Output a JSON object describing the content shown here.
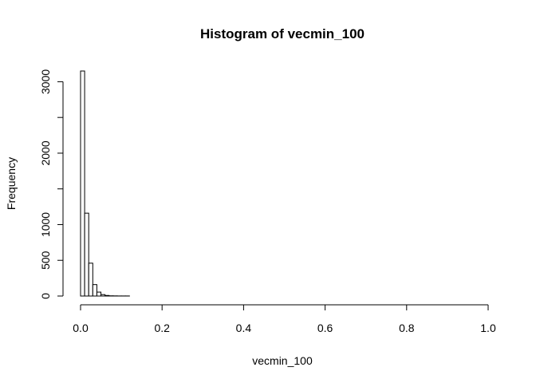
{
  "chart_data": {
    "type": "bar",
    "title": "Histogram of vecmin_100",
    "xlabel": "vecmin_100",
    "ylabel": "Frequency",
    "xlim": [
      0,
      1
    ],
    "ylim": [
      0,
      3150
    ],
    "x_ticks": [
      0,
      0.2,
      0.4,
      0.6,
      0.8,
      1
    ],
    "x_tick_labels": [
      "0.0",
      "0.2",
      "0.4",
      "0.6",
      "0.8",
      "1.0"
    ],
    "y_ticks": [
      0,
      500,
      1000,
      2000,
      3000
    ],
    "y_tick_labels": [
      "0",
      "500",
      "1000",
      "2000",
      "3000"
    ],
    "y_minor_ticks": [
      1500,
      2500
    ],
    "bins": [
      {
        "x0": 0.0,
        "x1": 0.01,
        "count": 3150
      },
      {
        "x0": 0.01,
        "x1": 0.02,
        "count": 1160
      },
      {
        "x0": 0.02,
        "x1": 0.03,
        "count": 460
      },
      {
        "x0": 0.03,
        "x1": 0.04,
        "count": 160
      },
      {
        "x0": 0.04,
        "x1": 0.05,
        "count": 55
      },
      {
        "x0": 0.05,
        "x1": 0.06,
        "count": 20
      },
      {
        "x0": 0.06,
        "x1": 0.07,
        "count": 8
      },
      {
        "x0": 0.07,
        "x1": 0.08,
        "count": 3
      },
      {
        "x0": 0.08,
        "x1": 0.09,
        "count": 2
      },
      {
        "x0": 0.09,
        "x1": 0.1,
        "count": 1
      },
      {
        "x0": 0.1,
        "x1": 0.11,
        "count": 1
      },
      {
        "x0": 0.11,
        "x1": 0.12,
        "count": 1
      }
    ],
    "grid": false,
    "legend": "none"
  }
}
